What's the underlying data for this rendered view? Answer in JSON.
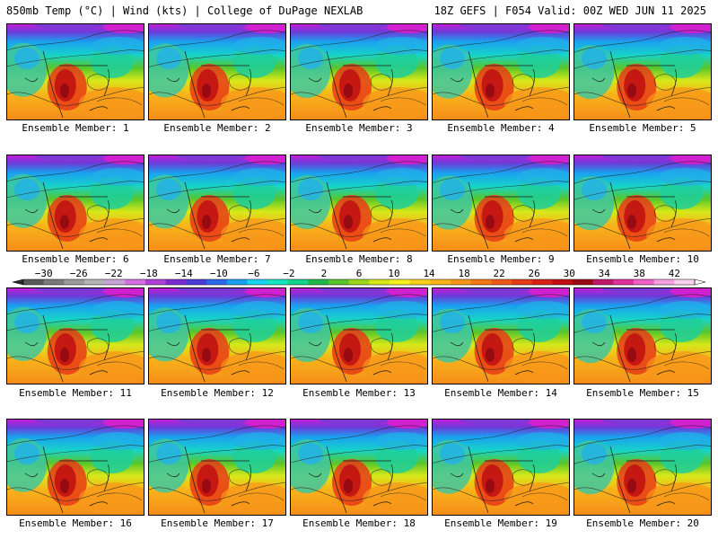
{
  "header": {
    "title_left": "850mb Temp (°C) | Wind (kts) | College of DuPage NEXLAB",
    "title_right": "18Z GEFS | F054 Valid: 00Z WED JUN 11 2025"
  },
  "panels": [
    {
      "caption": "Ensemble Member: 1"
    },
    {
      "caption": "Ensemble Member: 2"
    },
    {
      "caption": "Ensemble Member: 3"
    },
    {
      "caption": "Ensemble Member: 4"
    },
    {
      "caption": "Ensemble Member: 5"
    },
    {
      "caption": "Ensemble Member: 6"
    },
    {
      "caption": "Ensemble Member: 7"
    },
    {
      "caption": "Ensemble Member: 8"
    },
    {
      "caption": "Ensemble Member: 9"
    },
    {
      "caption": "Ensemble Member: 10"
    },
    {
      "caption": "Ensemble Member: 11"
    },
    {
      "caption": "Ensemble Member: 12"
    },
    {
      "caption": "Ensemble Member: 13"
    },
    {
      "caption": "Ensemble Member: 14"
    },
    {
      "caption": "Ensemble Member: 15"
    },
    {
      "caption": "Ensemble Member: 16"
    },
    {
      "caption": "Ensemble Member: 17"
    },
    {
      "caption": "Ensemble Member: 18"
    },
    {
      "caption": "Ensemble Member: 19"
    },
    {
      "caption": "Ensemble Member: 20"
    }
  ],
  "colorbar": {
    "tick_labels": [
      "-30",
      "-26",
      "-22",
      "-18",
      "-14",
      "-10",
      "-6",
      "-2",
      "2",
      "6",
      "10",
      "14",
      "18",
      "22",
      "26",
      "30",
      "34",
      "38",
      "42"
    ],
    "colors": [
      "#5a5a5a",
      "#7a7a7a",
      "#9a9a9a",
      "#b4b4b4",
      "#c9a3d8",
      "#d56ee0",
      "#b040d8",
      "#7a2bd0",
      "#4a3ad8",
      "#2a6ae8",
      "#1aa0f0",
      "#18d4f0",
      "#16e6c0",
      "#14d38a",
      "#20b848",
      "#58c62a",
      "#9ad61c",
      "#d6e81a",
      "#f4f01c",
      "#f8d21a",
      "#f8b41a",
      "#f8961a",
      "#f47818",
      "#f05a18",
      "#e83c16",
      "#d82014",
      "#c00e12",
      "#9a0812",
      "#c0186a",
      "#e0309e",
      "#f060c8",
      "#f8a0e0",
      "#fcd0f0"
    ]
  }
}
